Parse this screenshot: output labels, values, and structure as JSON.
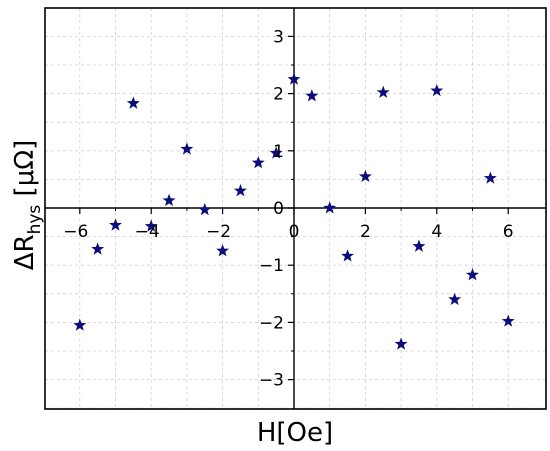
{
  "chart_data": {
    "type": "scatter",
    "title": "",
    "xlabel": "H[Oe]",
    "ylabel": {
      "main": "ΔR",
      "subscript": "hys",
      "unit": " [μΩ]"
    },
    "xlim": [
      -6.6,
      6.6
    ],
    "ylim": [
      -3.5,
      3.5
    ],
    "x_ticks": [
      -6,
      -4,
      -2,
      0,
      2,
      4,
      6
    ],
    "y_ticks": [
      -3,
      -2,
      -1,
      0,
      1,
      2,
      3
    ],
    "x_tick_labels": [
      "−6",
      "−4",
      "−2",
      "0",
      "2",
      "4",
      "6"
    ],
    "y_tick_labels": [
      "−3",
      "−2",
      "−1",
      "0",
      "1",
      "2",
      "3"
    ],
    "grid": true,
    "marker": "star",
    "marker_color": "#0c0c7a",
    "series": [
      {
        "points": [
          {
            "x": -6.0,
            "y": -2.05
          },
          {
            "x": -5.5,
            "y": -0.72
          },
          {
            "x": -5.0,
            "y": -0.3
          },
          {
            "x": -4.5,
            "y": 1.83
          },
          {
            "x": -4.0,
            "y": -0.32
          },
          {
            "x": -3.5,
            "y": 0.13
          },
          {
            "x": -3.0,
            "y": 1.03
          },
          {
            "x": -2.5,
            "y": -0.03
          },
          {
            "x": -2.0,
            "y": -0.75
          },
          {
            "x": -1.5,
            "y": 0.3
          },
          {
            "x": -1.0,
            "y": 0.79
          },
          {
            "x": -0.5,
            "y": 0.96
          },
          {
            "x": 0.0,
            "y": 2.25
          },
          {
            "x": 0.5,
            "y": 1.96
          },
          {
            "x": 1.0,
            "y": 0.0
          },
          {
            "x": 1.5,
            "y": -0.84
          },
          {
            "x": 2.0,
            "y": 0.55
          },
          {
            "x": 2.5,
            "y": 2.02
          },
          {
            "x": 3.0,
            "y": -2.38
          },
          {
            "x": 3.5,
            "y": -0.67
          },
          {
            "x": 4.0,
            "y": 2.05
          },
          {
            "x": 4.5,
            "y": -1.6
          },
          {
            "x": 5.0,
            "y": -1.17
          },
          {
            "x": 5.5,
            "y": 0.52
          },
          {
            "x": 6.0,
            "y": -1.98
          }
        ]
      }
    ]
  }
}
